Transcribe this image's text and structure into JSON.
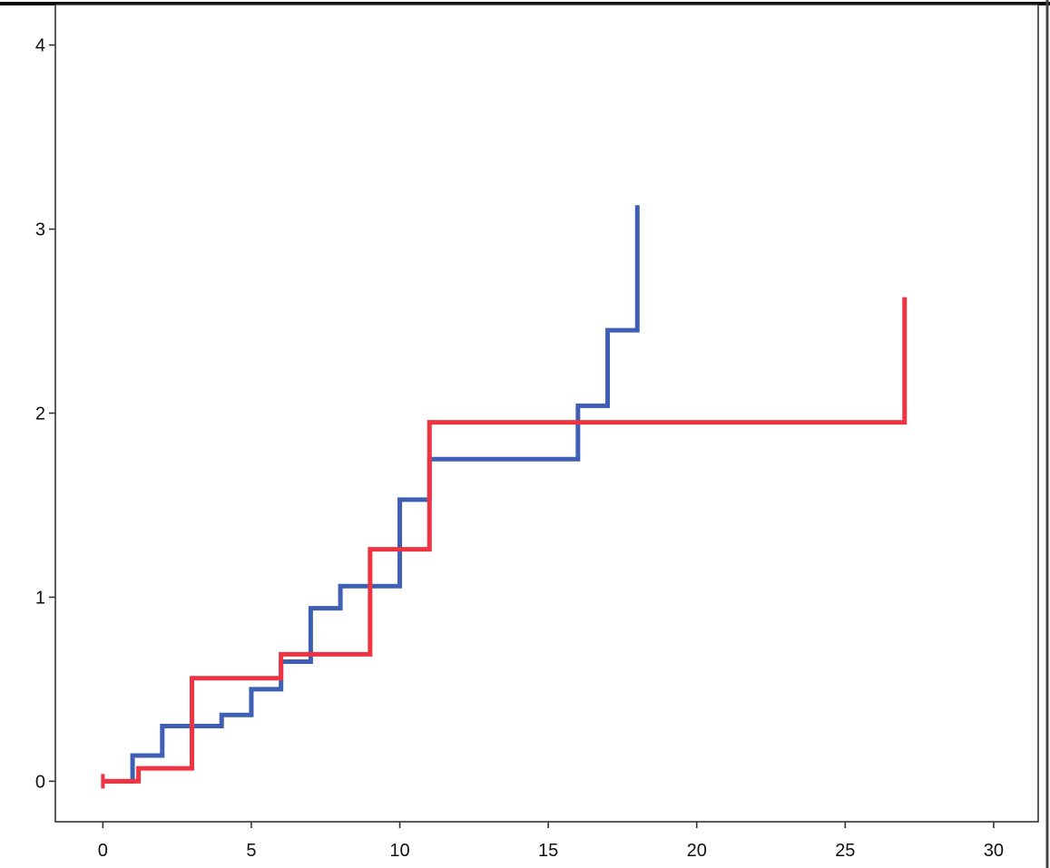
{
  "chart_data": {
    "type": "line",
    "title": "",
    "xlabel": "",
    "ylabel": "",
    "xlim": [
      -1.6,
      31.5
    ],
    "ylim": [
      -0.22,
      4.22
    ],
    "x_ticks": [
      0,
      5,
      10,
      15,
      20,
      25,
      30
    ],
    "y_ticks": [
      0,
      1,
      2,
      3,
      4
    ],
    "x_tick_labels": [
      "0",
      "5",
      "10",
      "15",
      "20",
      "25",
      "30"
    ],
    "y_tick_labels": [
      "0",
      "1",
      "2",
      "3",
      "4"
    ],
    "grid": false,
    "legend": "none",
    "step": "post",
    "series": [
      {
        "color": "#3f5fb5",
        "x": [
          0,
          1,
          2,
          4,
          5,
          6,
          7,
          8,
          10,
          11,
          16,
          17,
          18
        ],
        "y": [
          0,
          0.14,
          0.3,
          0.36,
          0.5,
          0.65,
          0.94,
          1.06,
          1.53,
          1.75,
          2.04,
          2.45,
          3.13
        ]
      },
      {
        "color": "#ef3340",
        "x": [
          0,
          1.2,
          3,
          6,
          9,
          11,
          27
        ],
        "y": [
          0,
          0.07,
          0.56,
          0.69,
          1.26,
          1.95,
          2.63
        ],
        "censored_x": [
          0
        ]
      }
    ]
  }
}
